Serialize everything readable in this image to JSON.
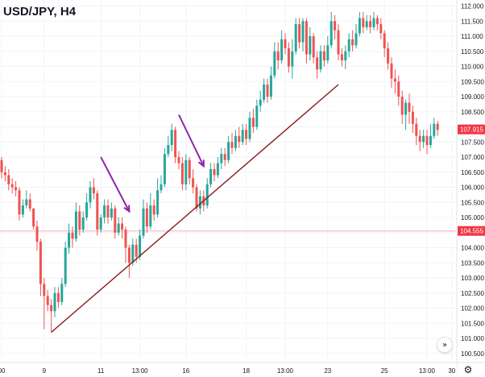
{
  "chart_data": {
    "type": "candlestick",
    "title": "USD/JPY, H4",
    "ylim": [
      100.2,
      112.2
    ],
    "y_ticks": [
      "112.000",
      "111.500",
      "111.000",
      "110.500",
      "110.000",
      "109.500",
      "109.000",
      "108.500",
      "108.000",
      "107.500",
      "107.000",
      "106.500",
      "106.000",
      "105.500",
      "105.000",
      "104.500",
      "104.000",
      "103.500",
      "103.000",
      "102.500",
      "102.000",
      "101.500",
      "101.000",
      "100.500"
    ],
    "x_ticks": [
      {
        "i": 0,
        "label": "00"
      },
      {
        "i": 12,
        "label": "9"
      },
      {
        "i": 28,
        "label": "11"
      },
      {
        "i": 39,
        "label": "13:00"
      },
      {
        "i": 52,
        "label": "16"
      },
      {
        "i": 69,
        "label": "18"
      },
      {
        "i": 80,
        "label": "13:00"
      },
      {
        "i": 92,
        "label": "23"
      },
      {
        "i": 108,
        "label": "25"
      },
      {
        "i": 120,
        "label": "13:00"
      },
      {
        "i": 127,
        "label": "30"
      }
    ],
    "current_price": {
      "label": "107.915",
      "value": 107.915,
      "color": "#f23645"
    },
    "marked_price": {
      "label": "104.555",
      "value": 104.555,
      "color": "#f23645"
    },
    "colors": {
      "up": "#26a69a",
      "down": "#ef5350",
      "trendline": "#8b1a1a",
      "arrow": "#8e24aa"
    },
    "trendline": {
      "from": {
        "i": 14,
        "price": 101.2
      },
      "to": {
        "i": 95,
        "price": 109.4
      }
    },
    "arrows": [
      {
        "from": {
          "i": 28,
          "price": 107.0
        },
        "to": {
          "i": 36,
          "price": 105.2
        }
      },
      {
        "from": {
          "i": 50,
          "price": 108.4
        },
        "to": {
          "i": 57,
          "price": 106.7
        }
      }
    ],
    "candles": [
      [
        106.9,
        106.5,
        107.0,
        106.3
      ],
      [
        106.5,
        106.4,
        106.7,
        106.2
      ],
      [
        106.4,
        106.1,
        106.6,
        105.9
      ],
      [
        106.1,
        106.0,
        106.3,
        105.8
      ],
      [
        106.0,
        105.9,
        106.2,
        105.7
      ],
      [
        105.9,
        105.1,
        106.0,
        104.9
      ],
      [
        105.1,
        105.4,
        105.6,
        105.0
      ],
      [
        105.4,
        105.6,
        105.9,
        105.3
      ],
      [
        105.6,
        105.3,
        105.8,
        105.2
      ],
      [
        105.3,
        104.7,
        105.3,
        104.6
      ],
      [
        104.7,
        104.2,
        104.9,
        103.9
      ],
      [
        104.2,
        102.8,
        104.3,
        102.4
      ],
      [
        102.8,
        102.4,
        103.0,
        101.3
      ],
      [
        102.4,
        102.1,
        102.6,
        101.9
      ],
      [
        102.1,
        101.9,
        102.3,
        101.2
      ],
      [
        101.9,
        102.5,
        102.7,
        101.7
      ],
      [
        102.5,
        102.2,
        102.7,
        102.0
      ],
      [
        102.2,
        102.8,
        103.0,
        102.1
      ],
      [
        102.8,
        104.0,
        104.2,
        102.7
      ],
      [
        104.0,
        104.5,
        104.8,
        103.8
      ],
      [
        104.5,
        104.3,
        104.7,
        104.0
      ],
      [
        104.3,
        105.2,
        105.5,
        104.2
      ],
      [
        105.2,
        104.6,
        105.4,
        104.4
      ],
      [
        104.6,
        105.0,
        105.2,
        104.5
      ],
      [
        105.0,
        105.5,
        105.8,
        104.9
      ],
      [
        105.5,
        106.0,
        106.2,
        105.3
      ],
      [
        106.0,
        105.8,
        106.3,
        105.6
      ],
      [
        105.8,
        104.6,
        105.9,
        104.4
      ],
      [
        104.6,
        105.0,
        105.1,
        104.5
      ],
      [
        105.0,
        105.4,
        105.6,
        104.8
      ],
      [
        105.4,
        105.0,
        105.6,
        104.8
      ],
      [
        105.0,
        105.3,
        105.5,
        104.9
      ],
      [
        105.3,
        104.5,
        105.4,
        104.3
      ],
      [
        104.5,
        104.8,
        105.0,
        104.4
      ],
      [
        104.8,
        104.6,
        105.0,
        104.3
      ],
      [
        104.6,
        104.0,
        104.7,
        103.5
      ],
      [
        104.0,
        103.5,
        104.1,
        103.0
      ],
      [
        103.5,
        104.1,
        104.3,
        103.4
      ],
      [
        104.1,
        103.7,
        104.3,
        103.5
      ],
      [
        103.7,
        104.4,
        104.6,
        103.6
      ],
      [
        104.4,
        105.3,
        105.6,
        104.3
      ],
      [
        105.3,
        104.7,
        105.5,
        104.5
      ],
      [
        104.7,
        105.4,
        105.8,
        104.6
      ],
      [
        105.4,
        105.1,
        105.6,
        104.9
      ],
      [
        105.1,
        105.9,
        106.3,
        105.0
      ],
      [
        105.9,
        106.1,
        106.4,
        105.8
      ],
      [
        106.1,
        107.1,
        107.3,
        106.0
      ],
      [
        107.1,
        107.4,
        107.7,
        107.0
      ],
      [
        107.4,
        107.9,
        108.1,
        107.2
      ],
      [
        107.9,
        107.0,
        108.0,
        106.8
      ],
      [
        107.0,
        106.8,
        107.2,
        106.6
      ],
      [
        106.8,
        106.1,
        107.0,
        105.9
      ],
      [
        106.1,
        106.9,
        107.1,
        105.9
      ],
      [
        106.9,
        106.3,
        107.0,
        106.1
      ],
      [
        106.3,
        106.0,
        106.6,
        105.8
      ],
      [
        106.0,
        105.3,
        106.1,
        105.2
      ],
      [
        105.3,
        105.7,
        105.9,
        105.1
      ],
      [
        105.7,
        105.4,
        105.9,
        105.2
      ],
      [
        105.4,
        106.1,
        106.3,
        105.3
      ],
      [
        106.1,
        106.6,
        106.8,
        106.0
      ],
      [
        106.6,
        106.4,
        106.8,
        106.2
      ],
      [
        106.4,
        106.8,
        107.0,
        106.3
      ],
      [
        106.8,
        107.1,
        107.3,
        106.6
      ],
      [
        107.1,
        106.9,
        107.3,
        106.7
      ],
      [
        106.9,
        107.5,
        107.7,
        106.8
      ],
      [
        107.5,
        107.3,
        107.8,
        107.1
      ],
      [
        107.3,
        107.7,
        107.9,
        107.2
      ],
      [
        107.7,
        107.5,
        108.0,
        107.3
      ],
      [
        107.5,
        107.9,
        108.1,
        107.4
      ],
      [
        107.9,
        107.6,
        108.1,
        107.4
      ],
      [
        107.6,
        108.3,
        108.5,
        107.5
      ],
      [
        108.3,
        108.0,
        108.6,
        107.8
      ],
      [
        108.0,
        108.7,
        108.9,
        107.9
      ],
      [
        108.7,
        108.9,
        109.2,
        108.5
      ],
      [
        108.9,
        109.4,
        109.6,
        108.8
      ],
      [
        109.4,
        109.0,
        109.6,
        108.8
      ],
      [
        109.0,
        109.7,
        110.0,
        108.9
      ],
      [
        109.7,
        110.5,
        110.8,
        109.6
      ],
      [
        110.5,
        110.2,
        110.8,
        109.9
      ],
      [
        110.2,
        110.9,
        111.2,
        110.1
      ],
      [
        110.9,
        110.6,
        111.1,
        110.4
      ],
      [
        110.6,
        110.0,
        110.8,
        109.8
      ],
      [
        110.0,
        110.5,
        110.9,
        109.6
      ],
      [
        110.5,
        111.4,
        111.6,
        110.4
      ],
      [
        111.4,
        110.8,
        111.6,
        110.6
      ],
      [
        110.8,
        111.5,
        111.6,
        110.5
      ],
      [
        111.5,
        110.4,
        111.6,
        110.1
      ],
      [
        110.4,
        111.0,
        111.3,
        110.2
      ],
      [
        111.0,
        110.3,
        111.1,
        110.1
      ],
      [
        110.3,
        109.9,
        110.5,
        109.6
      ],
      [
        109.9,
        110.5,
        110.7,
        109.8
      ],
      [
        110.5,
        110.2,
        110.7,
        110.0
      ],
      [
        110.2,
        110.7,
        111.0,
        110.1
      ],
      [
        110.7,
        111.5,
        111.8,
        110.6
      ],
      [
        111.5,
        111.2,
        111.7,
        110.9
      ],
      [
        111.2,
        110.4,
        111.4,
        110.2
      ],
      [
        110.4,
        110.2,
        110.6,
        110.0
      ],
      [
        110.2,
        110.5,
        110.7,
        109.9
      ],
      [
        110.5,
        110.9,
        111.1,
        110.3
      ],
      [
        110.9,
        110.7,
        111.2,
        110.5
      ],
      [
        110.7,
        111.1,
        111.4,
        110.6
      ],
      [
        111.1,
        111.6,
        111.8,
        111.0
      ],
      [
        111.6,
        111.3,
        111.8,
        111.1
      ],
      [
        111.3,
        111.5,
        111.7,
        111.2
      ],
      [
        111.5,
        111.3,
        111.7,
        111.1
      ],
      [
        111.3,
        111.6,
        111.8,
        111.2
      ],
      [
        111.6,
        111.4,
        111.7,
        111.2
      ],
      [
        111.4,
        111.1,
        111.6,
        110.9
      ],
      [
        111.1,
        110.6,
        111.2,
        110.3
      ],
      [
        110.6,
        110.1,
        110.8,
        109.9
      ],
      [
        110.1,
        109.6,
        110.3,
        109.3
      ],
      [
        109.6,
        109.5,
        109.9,
        109.1
      ],
      [
        109.5,
        109.0,
        109.7,
        108.7
      ],
      [
        109.0,
        108.4,
        109.2,
        108.1
      ],
      [
        108.4,
        108.8,
        108.9,
        107.9
      ],
      [
        108.8,
        108.5,
        109.1,
        108.1
      ],
      [
        108.5,
        108.1,
        108.7,
        107.8
      ],
      [
        108.1,
        107.7,
        108.3,
        107.4
      ],
      [
        107.7,
        107.5,
        107.9,
        107.2
      ],
      [
        107.5,
        107.7,
        107.9,
        107.3
      ],
      [
        107.7,
        107.4,
        107.9,
        107.1
      ],
      [
        107.4,
        107.7,
        108.1,
        107.3
      ],
      [
        107.7,
        108.1,
        108.3,
        107.6
      ],
      [
        108.1,
        107.9,
        108.2,
        107.7
      ]
    ]
  }
}
